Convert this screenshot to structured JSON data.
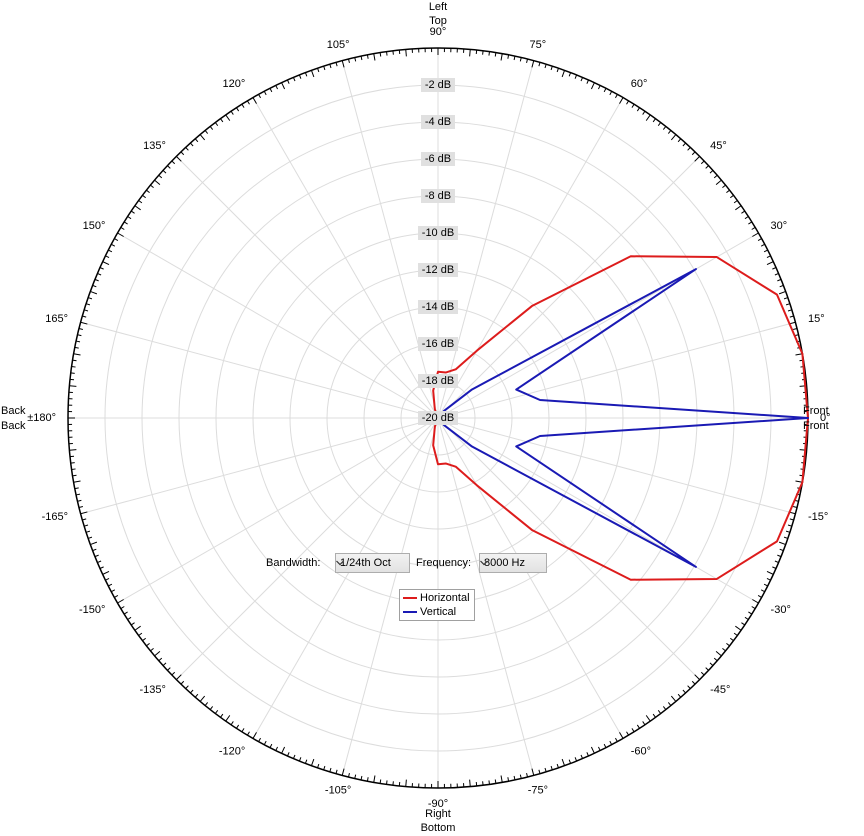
{
  "chart_data": {
    "type": "polar",
    "rlim": [
      -20,
      0
    ],
    "rticks": [
      {
        "value": -2,
        "label": "-2 dB"
      },
      {
        "value": -4,
        "label": "-4 dB"
      },
      {
        "value": -6,
        "label": "-6 dB"
      },
      {
        "value": -8,
        "label": "-8 dB"
      },
      {
        "value": -10,
        "label": "-10 dB"
      },
      {
        "value": -12,
        "label": "-12 dB"
      },
      {
        "value": -14,
        "label": "-14 dB"
      },
      {
        "value": -16,
        "label": "-16 dB"
      },
      {
        "value": -18,
        "label": "-18 dB"
      },
      {
        "value": -20,
        "label": "-20 dB"
      }
    ],
    "xticks": [
      {
        "value": 0,
        "label": "0°"
      },
      {
        "value": 15,
        "label": "15°"
      },
      {
        "value": 30,
        "label": "30°"
      },
      {
        "value": 45,
        "label": "45°"
      },
      {
        "value": 60,
        "label": "60°"
      },
      {
        "value": 75,
        "label": "75°"
      },
      {
        "value": 90,
        "label": "90°"
      },
      {
        "value": 105,
        "label": "105°"
      },
      {
        "value": 120,
        "label": "120°"
      },
      {
        "value": 135,
        "label": "135°"
      },
      {
        "value": 150,
        "label": "150°"
      },
      {
        "value": 165,
        "label": "165°"
      },
      {
        "value": 180,
        "label": "±180°"
      },
      {
        "value": -165,
        "label": "-165°"
      },
      {
        "value": -150,
        "label": "-150°"
      },
      {
        "value": -135,
        "label": "-135°"
      },
      {
        "value": -120,
        "label": "-120°"
      },
      {
        "value": -105,
        "label": "-105°"
      },
      {
        "value": -90,
        "label": "-90°"
      },
      {
        "value": -75,
        "label": "-75°"
      },
      {
        "value": -60,
        "label": "-60°"
      },
      {
        "value": -45,
        "label": "-45°"
      },
      {
        "value": -30,
        "label": "-30°"
      },
      {
        "value": -15,
        "label": "-15°"
      }
    ],
    "grid": true,
    "x": [
      -180,
      -170,
      -160,
      -150,
      -140,
      -130,
      -120,
      -110,
      -100,
      -90,
      -80,
      -70,
      -60,
      -50,
      -40,
      -30,
      -20,
      -10,
      0,
      10,
      20,
      30,
      40,
      50,
      60,
      70,
      80,
      90,
      100,
      110,
      120,
      130,
      140,
      150,
      160,
      170,
      180
    ],
    "series": [
      {
        "name": "Horizontal",
        "color": "#dd1c1c",
        "values": [
          -20,
          -20,
          -20,
          -20,
          -20,
          -20,
          -20,
          -19.5,
          -18.5,
          -17.5,
          -17.5,
          -17.2,
          -15.8,
          -12.1,
          -6.4,
          -2.6,
          -0.5,
          0,
          0,
          0,
          -0.5,
          -2.6,
          -6.4,
          -12.1,
          -15.8,
          -17.2,
          -17.5,
          -17.5,
          -18.5,
          -19.5,
          -20,
          -20,
          -20,
          -20,
          -20,
          -20,
          -20
        ]
      },
      {
        "name": "Vertical",
        "color": "#1a1ab4",
        "values": [
          -20,
          -20,
          -20,
          -20,
          -20,
          -20,
          -20,
          -20,
          -20,
          -20,
          -20,
          -20,
          -20,
          -19.5,
          -17.6,
          -3.9,
          -15.5,
          -14.4,
          0,
          -14.4,
          -15.5,
          -3.9,
          -17.6,
          -19.5,
          -20,
          -20,
          -20,
          -20,
          -20,
          -20,
          -20,
          -20,
          -20,
          -20,
          -20,
          -20,
          -20
        ]
      }
    ],
    "annotations": [
      {
        "text": "Left",
        "color": "#dd1c1c"
      },
      {
        "text": "Top",
        "color": "#1a1ab4"
      },
      {
        "text": "Right",
        "color": "#dd1c1c"
      },
      {
        "text": "Bottom",
        "color": "#1a1ab4"
      },
      {
        "text": "Front",
        "color": "#dd1c1c"
      },
      {
        "text": "Front",
        "color": "#1a1ab4"
      },
      {
        "text": "Back",
        "color": "#dd1c1c"
      },
      {
        "text": "Back",
        "color": "#1a1ab4"
      }
    ]
  },
  "controls": {
    "bandwidth_label": "Bandwidth:",
    "bandwidth_value": "1/24th Oct",
    "frequency_label": "Frequency:",
    "frequency_value": "8000 Hz"
  }
}
